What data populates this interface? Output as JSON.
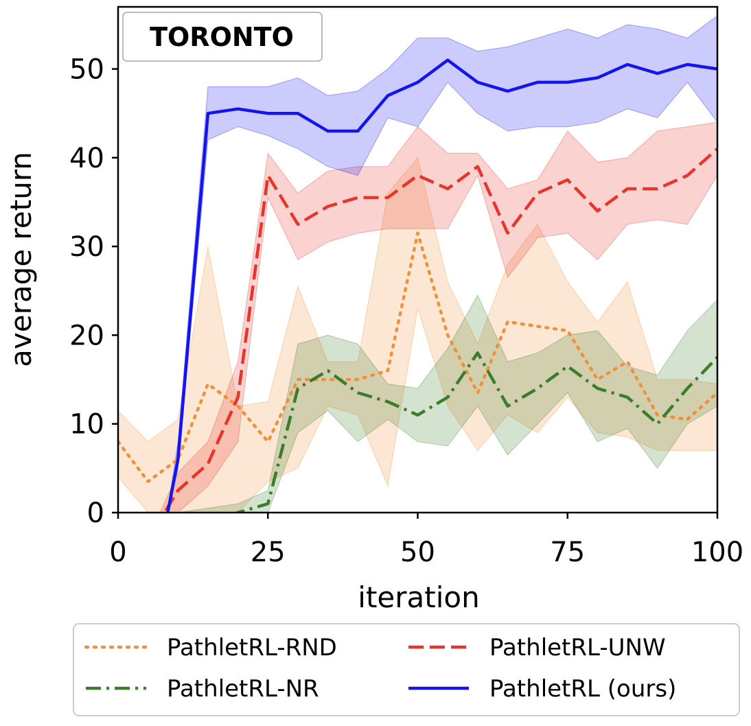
{
  "chart_data": {
    "type": "line",
    "badge": "TORONTO",
    "xlabel": "iteration",
    "ylabel": "average return",
    "xlim": [
      0,
      100
    ],
    "ylim": [
      0,
      57
    ],
    "xticks": [
      0,
      25,
      50,
      75,
      100
    ],
    "yticks": [
      0,
      10,
      20,
      30,
      40,
      50
    ],
    "x": [
      0,
      5,
      10,
      15,
      20,
      25,
      30,
      35,
      40,
      45,
      50,
      55,
      60,
      65,
      70,
      75,
      80,
      85,
      90,
      95,
      100
    ],
    "legend_position": "below-plot",
    "series": [
      {
        "name": "PathletRL-RND",
        "color": "#f0913a",
        "style": "dotted",
        "x": [
          0,
          5,
          10,
          15,
          20,
          25,
          30,
          35,
          40,
          45,
          50,
          55,
          60,
          65,
          70,
          75,
          80,
          85,
          90,
          95,
          100
        ],
        "values": [
          8,
          3.5,
          6,
          14.5,
          12,
          8,
          15,
          15,
          15,
          16,
          31.5,
          20,
          13.5,
          21.5,
          21,
          20.5,
          15,
          17,
          11,
          10.5,
          13.5
        ],
        "lower": [
          4,
          0,
          0,
          0,
          0,
          3.5,
          5,
          12,
          11,
          3,
          23,
          12,
          7,
          11,
          9,
          13,
          9,
          8.5,
          7,
          7,
          7
        ],
        "upper": [
          11.5,
          8,
          10.5,
          30,
          12,
          12.5,
          25.5,
          17,
          17,
          36,
          40,
          26,
          19,
          28,
          32.5,
          26,
          21.5,
          26,
          15,
          15,
          14.5
        ]
      },
      {
        "name": "PathletRL-NR",
        "color": "#3a7d2a",
        "style": "dashdot",
        "x": [
          0,
          5,
          10,
          15,
          20,
          25,
          30,
          35,
          40,
          45,
          50,
          55,
          60,
          65,
          70,
          75,
          80,
          85,
          90,
          95,
          100
        ],
        "values": [
          -3,
          -3,
          -2,
          -1,
          0,
          1,
          14,
          16,
          13.5,
          12.5,
          11,
          13,
          18,
          12,
          14,
          16.5,
          14,
          13,
          10,
          14,
          17.5
        ],
        "lower": [
          -3,
          -3,
          -3,
          -2,
          -1,
          0,
          9,
          11.5,
          8,
          10.5,
          8,
          7.5,
          12,
          6.5,
          10,
          13.5,
          8,
          9.5,
          5,
          10,
          12
        ],
        "upper": [
          -3,
          -3,
          0,
          0.5,
          1,
          2.5,
          19,
          20,
          19,
          14.5,
          14,
          18.5,
          24.5,
          17,
          18,
          20,
          20.5,
          16.5,
          15.5,
          20.5,
          24
        ]
      },
      {
        "name": "PathletRL-UNW",
        "color": "#e8352b",
        "style": "dashed",
        "x": [
          0,
          5,
          10,
          15,
          20,
          25,
          30,
          35,
          40,
          45,
          50,
          55,
          60,
          65,
          70,
          75,
          80,
          85,
          90,
          95,
          100
        ],
        "values": [
          -3,
          -3,
          2.5,
          5.5,
          13,
          38,
          32.5,
          34.5,
          35.5,
          35.5,
          38,
          36.5,
          39,
          31.5,
          36,
          37.5,
          34,
          36.5,
          36.5,
          38,
          41
        ],
        "lower": [
          -3,
          -3,
          0,
          3,
          8,
          35.5,
          28.5,
          30.5,
          31.5,
          32,
          32,
          32,
          38,
          26.5,
          31,
          31.5,
          28.5,
          32.5,
          33,
          32.5,
          38
        ],
        "upper": [
          -3,
          -3,
          4.5,
          8,
          17,
          40.5,
          36,
          38.5,
          39,
          39,
          43.5,
          40.5,
          40.5,
          36.5,
          37.5,
          43,
          39.5,
          40,
          43,
          43.5,
          44
        ]
      },
      {
        "name": "PathletRL (ours)",
        "color": "#1414f0",
        "style": "solid",
        "x": [
          0,
          5,
          8,
          10,
          15,
          20,
          25,
          30,
          35,
          40,
          45,
          50,
          55,
          60,
          65,
          70,
          75,
          80,
          85,
          90,
          95,
          100
        ],
        "values": [
          -3,
          -3,
          -1,
          6,
          45,
          45.5,
          45,
          45,
          43,
          43,
          47,
          48.5,
          51,
          48.5,
          47.5,
          48.5,
          48.5,
          49,
          50.5,
          49.5,
          50.5,
          50
        ],
        "lower": [
          -3,
          -3,
          -1,
          5,
          42,
          43.5,
          42.5,
          41,
          39,
          38,
          44.5,
          43.5,
          48.5,
          45,
          43,
          43.5,
          43.5,
          44,
          45.5,
          44.5,
          48.5,
          44
        ],
        "upper": [
          -3,
          -3,
          -1,
          8,
          48,
          48,
          48,
          49,
          47,
          47.5,
          50,
          53.5,
          53.5,
          52,
          52.5,
          53.5,
          54.5,
          53.5,
          55,
          54.5,
          53.5,
          56
        ]
      }
    ]
  }
}
